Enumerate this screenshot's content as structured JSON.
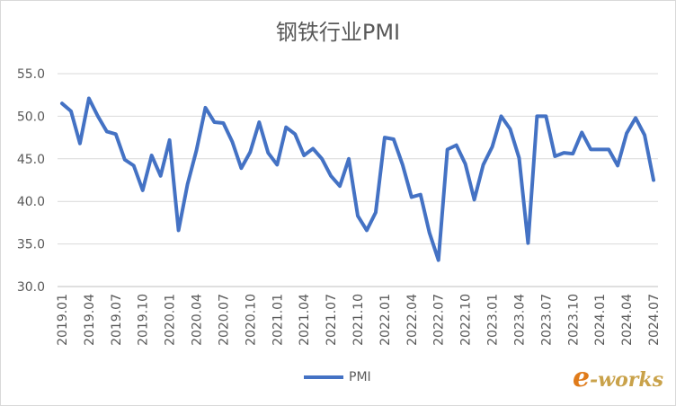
{
  "chart_data": {
    "type": "line",
    "title": "钢铁行业PMI",
    "xlabel": "",
    "ylabel": "",
    "ylim": [
      30,
      55
    ],
    "yticks": [
      "30.0",
      "35.0",
      "40.0",
      "45.0",
      "50.0",
      "55.0"
    ],
    "ytick_values": [
      30,
      35,
      40,
      45,
      50,
      55
    ],
    "grid": "horizontal",
    "legend_position": "bottom",
    "categories": [
      "2019.01",
      "2019.02",
      "2019.03",
      "2019.04",
      "2019.05",
      "2019.06",
      "2019.07",
      "2019.08",
      "2019.09",
      "2019.10",
      "2019.11",
      "2019.12",
      "2020.01",
      "2020.02",
      "2020.03",
      "2020.04",
      "2020.05",
      "2020.06",
      "2020.07",
      "2020.08",
      "2020.09",
      "2020.10",
      "2020.11",
      "2020.12",
      "2021.01",
      "2021.02",
      "2021.03",
      "2021.04",
      "2021.05",
      "2021.06",
      "2021.07",
      "2021.08",
      "2021.09",
      "2021.10",
      "2021.11",
      "2021.12",
      "2022.01",
      "2022.02",
      "2022.03",
      "2022.04",
      "2022.05",
      "2022.06",
      "2022.07",
      "2022.08",
      "2022.09",
      "2022.10",
      "2022.11",
      "2022.12",
      "2023.01",
      "2023.02",
      "2023.03",
      "2023.04",
      "2023.05",
      "2023.06",
      "2023.07",
      "2023.08",
      "2023.09",
      "2023.10",
      "2023.11",
      "2023.12",
      "2024.01",
      "2024.02",
      "2024.03",
      "2024.04",
      "2024.05",
      "2024.06",
      "2024.07"
    ],
    "x_tick_labels": [
      "2019.01",
      "2019.04",
      "2019.07",
      "2019.10",
      "2020.01",
      "2020.04",
      "2020.07",
      "2020.10",
      "2021.01",
      "2021.04",
      "2021.07",
      "2021.10",
      "2022.01",
      "2022.04",
      "2022.07",
      "2022.10",
      "2023.01",
      "2023.04",
      "2023.07",
      "2023.10",
      "2024.01",
      "2024.04",
      "2024.07"
    ],
    "series": [
      {
        "name": "PMI",
        "color": "#4472c4",
        "values": [
          51.5,
          50.6,
          46.8,
          52.1,
          50.0,
          48.2,
          47.9,
          44.9,
          44.2,
          41.3,
          45.4,
          43.0,
          47.2,
          36.6,
          42.0,
          46.0,
          51.0,
          49.3,
          49.2,
          47.0,
          43.9,
          45.8,
          49.3,
          45.7,
          44.3,
          48.7,
          47.9,
          45.4,
          46.2,
          45.0,
          43.0,
          41.8,
          45.0,
          38.3,
          36.6,
          38.7,
          47.5,
          47.3,
          44.3,
          40.5,
          40.8,
          36.3,
          33.1,
          46.1,
          46.6,
          44.4,
          40.2,
          44.3,
          46.4,
          50.0,
          48.5,
          45.1,
          35.1,
          50.0,
          50.0,
          45.3,
          45.7,
          45.6,
          48.1,
          46.1,
          46.1,
          46.1,
          44.2,
          48.0,
          49.8,
          47.8,
          42.5
        ]
      }
    ]
  },
  "watermark": {
    "first": "e",
    "rest": "-works"
  }
}
